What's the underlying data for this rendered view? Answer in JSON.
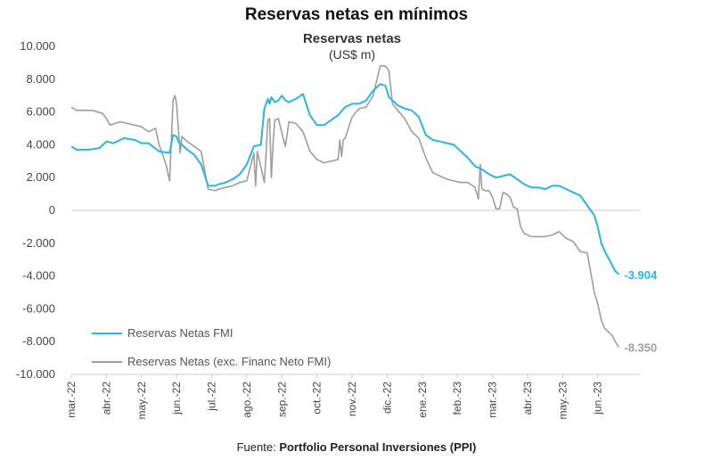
{
  "header": {
    "title": "Reservas netas en mínimos"
  },
  "footer": {
    "prefix": "Fuente: ",
    "source": "Portfolio Personal Inversiones (PPI)"
  },
  "chart_data": {
    "type": "line",
    "title": "Reservas netas",
    "subtitle": "(US$ m)",
    "xlabel": "",
    "ylabel": "",
    "ylim": [
      -10000,
      10000
    ],
    "yticks": [
      10000,
      8000,
      6000,
      4000,
      2000,
      0,
      -2000,
      -4000,
      -6000,
      -8000,
      -10000
    ],
    "ytick_labels": [
      "10.000",
      "8.000",
      "6.000",
      "4.000",
      "2.000",
      "0",
      "-2.000",
      "-4.000",
      "-6.000",
      "-8.000",
      "-10.000"
    ],
    "xlim": [
      0,
      16.2
    ],
    "xticks": [
      0,
      1,
      2,
      3,
      4,
      5,
      6,
      7,
      8,
      9,
      10,
      11,
      12,
      13,
      14,
      15
    ],
    "xtick_labels": [
      "mar.-22",
      "abr.-22",
      "may.-22",
      "jun.-22",
      "jul.-22",
      "ago.-22",
      "sep.-22",
      "oct.-22",
      "nov.-22",
      "dic.-22",
      "ene.-23",
      "feb.-23",
      "mar.-23",
      "abr.-23",
      "may.-23",
      "jun.-23"
    ],
    "legend_position": "bottom-left",
    "grid": false,
    "colors": {
      "fmi": "#29b6e0",
      "exc": "#9e9e9e",
      "axis": "#cccccc"
    },
    "series": [
      {
        "name": "Reservas Netas FMI",
        "color": "#29b6e0",
        "end_label": "-3.904",
        "x": [
          0,
          0.15,
          0.5,
          0.8,
          1.0,
          1.2,
          1.5,
          1.8,
          2.0,
          2.2,
          2.5,
          2.8,
          2.9,
          3.0,
          3.05,
          3.15,
          3.3,
          3.5,
          3.7,
          3.9,
          4.1,
          4.2,
          4.4,
          4.6,
          4.8,
          5.0,
          5.2,
          5.4,
          5.5,
          5.6,
          5.65,
          5.7,
          5.8,
          5.9,
          6.0,
          6.1,
          6.2,
          6.4,
          6.6,
          6.8,
          6.9,
          7.0,
          7.2,
          7.4,
          7.6,
          7.8,
          8.0,
          8.2,
          8.4,
          8.6,
          8.8,
          8.95,
          9.05,
          9.15,
          9.3,
          9.5,
          9.7,
          9.9,
          10.1,
          10.3,
          10.5,
          10.7,
          10.9,
          11.1,
          11.3,
          11.5,
          11.7,
          11.9,
          12.1,
          12.3,
          12.5,
          12.7,
          12.9,
          13.1,
          13.3,
          13.5,
          13.7,
          13.9,
          14.1,
          14.3,
          14.5,
          14.7,
          14.9,
          15.0,
          15.1,
          15.2,
          15.3,
          15.4,
          15.5,
          15.6
        ],
        "values": [
          3900,
          3700,
          3700,
          3800,
          4200,
          4100,
          4400,
          4300,
          4100,
          4100,
          3600,
          3500,
          4600,
          4500,
          4200,
          4000,
          3700,
          3400,
          2800,
          1500,
          1500,
          1600,
          1700,
          1900,
          2200,
          2800,
          3900,
          4000,
          6200,
          6800,
          6500,
          6900,
          6600,
          6700,
          7000,
          6700,
          6600,
          6800,
          7100,
          5800,
          5500,
          5200,
          5200,
          5500,
          5800,
          6300,
          6500,
          6500,
          6700,
          7300,
          7700,
          7600,
          6900,
          6700,
          6400,
          6200,
          6100,
          5700,
          4600,
          4300,
          4200,
          4100,
          4000,
          3600,
          3200,
          2700,
          2500,
          2200,
          2000,
          2100,
          2200,
          1900,
          1600,
          1400,
          1400,
          1300,
          1500,
          1500,
          1300,
          1100,
          900,
          300,
          -300,
          -1000,
          -2000,
          -2500,
          -2900,
          -3300,
          -3700,
          -3904
        ]
      },
      {
        "name": "Reservas Netas (exc. Financ Neto FMI)",
        "color": "#9e9e9e",
        "end_label": "-8.350",
        "x": [
          0,
          0.15,
          0.6,
          0.9,
          1.0,
          1.1,
          1.4,
          1.8,
          2.0,
          2.2,
          2.4,
          2.5,
          2.7,
          2.8,
          2.9,
          2.95,
          3.0,
          3.1,
          3.15,
          3.3,
          3.5,
          3.7,
          3.9,
          4.1,
          4.2,
          4.4,
          4.6,
          4.8,
          5.0,
          5.2,
          5.25,
          5.3,
          5.5,
          5.55,
          5.6,
          5.65,
          5.7,
          5.75,
          5.8,
          5.9,
          6.0,
          6.1,
          6.2,
          6.4,
          6.6,
          6.8,
          7.0,
          7.2,
          7.4,
          7.6,
          7.65,
          7.7,
          7.75,
          7.8,
          8.0,
          8.2,
          8.4,
          8.6,
          8.8,
          8.95,
          9.05,
          9.15,
          9.3,
          9.5,
          9.7,
          9.9,
          10.1,
          10.3,
          10.5,
          10.7,
          10.9,
          11.1,
          11.3,
          11.5,
          11.6,
          11.65,
          11.7,
          11.8,
          11.9,
          12.0,
          12.1,
          12.2,
          12.3,
          12.4,
          12.5,
          12.6,
          12.7,
          12.8,
          12.9,
          13.1,
          13.3,
          13.5,
          13.7,
          13.9,
          14.1,
          14.3,
          14.5,
          14.7,
          14.9,
          15.0,
          15.1,
          15.2,
          15.3,
          15.4,
          15.5,
          15.6
        ],
        "values": [
          6300,
          6100,
          6100,
          5900,
          5600,
          5200,
          5400,
          5200,
          5100,
          4800,
          5000,
          4000,
          2800,
          1800,
          6700,
          7000,
          6500,
          3500,
          4500,
          4200,
          3900,
          3600,
          1300,
          1200,
          1300,
          1400,
          1500,
          1700,
          1800,
          3500,
          1500,
          3600,
          1700,
          3500,
          5500,
          5600,
          2000,
          4200,
          5500,
          5600,
          4700,
          3900,
          5400,
          5300,
          4800,
          3600,
          3100,
          2900,
          3000,
          3100,
          4300,
          3300,
          4300,
          4400,
          5700,
          6200,
          6300,
          7000,
          8800,
          8800,
          8500,
          6500,
          6100,
          5600,
          4800,
          4400,
          3200,
          2300,
          2100,
          1900,
          1800,
          1700,
          1700,
          1400,
          700,
          2800,
          1300,
          1200,
          1200,
          800,
          100,
          100,
          1100,
          1000,
          800,
          200,
          100,
          -1000,
          -1400,
          -1600,
          -1600,
          -1600,
          -1500,
          -1300,
          -1700,
          -1900,
          -2500,
          -2600,
          -5000,
          -5700,
          -6700,
          -7200,
          -7400,
          -7600,
          -8000,
          -8350
        ]
      }
    ]
  }
}
